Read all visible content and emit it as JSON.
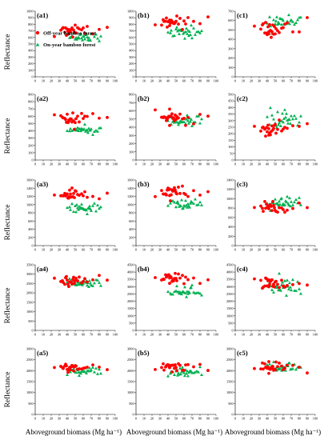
{
  "figure": {
    "ylabel": "Reflectance",
    "xlabel": "Aboveground biomass (Mg ha⁻¹)"
  },
  "legend": {
    "off_year": "Off-year bamboo forest",
    "on_year": "On-year bamboo forest"
  },
  "colors": {
    "off_year": "#ff0000",
    "on_year": "#00b050",
    "axis": "#000000"
  },
  "chart_data": {
    "type": "scatter",
    "xlim": [
      0,
      100
    ],
    "xticks": [
      0,
      10,
      20,
      30,
      40,
      50,
      60,
      70,
      80,
      90,
      100
    ],
    "series_names": [
      "Off-year bamboo forest",
      "On-year bamboo forest"
    ],
    "off_x": [
      24,
      32,
      34,
      35,
      37,
      38,
      39,
      40,
      41,
      42,
      42,
      43,
      44,
      45,
      46,
      47,
      48,
      49,
      50,
      51,
      53,
      55,
      58,
      60,
      62,
      65,
      72,
      80,
      90
    ],
    "on_x": [
      40,
      43,
      44,
      46,
      48,
      50,
      51,
      52,
      53,
      54,
      55,
      56,
      57,
      58,
      59,
      60,
      61,
      62,
      63,
      64,
      65,
      66,
      67,
      68,
      69,
      70,
      72,
      74,
      76,
      78,
      80,
      82
    ],
    "panels": [
      {
        "label": "(a1)",
        "ylim": [
          0,
          1000
        ],
        "yticks": [
          0,
          100,
          200,
          300,
          400,
          500,
          600,
          700,
          800,
          900,
          1000
        ],
        "off_c": [
          705,
          40
        ],
        "on_c": [
          610,
          35
        ]
      },
      {
        "label": "(b1)",
        "ylim": [
          0,
          1000
        ],
        "yticks": [
          0,
          100,
          200,
          300,
          400,
          500,
          600,
          700,
          800,
          900,
          1000
        ],
        "off_c": [
          830,
          50
        ],
        "on_c": [
          670,
          50
        ]
      },
      {
        "label": "(c1)",
        "ylim": [
          0,
          700
        ],
        "yticks": [
          0,
          100,
          200,
          300,
          400,
          500,
          600,
          700
        ],
        "off_c": [
          520,
          50
        ],
        "on_c": [
          600,
          40
        ]
      },
      {
        "label": "(a2)",
        "ylim": [
          0,
          900
        ],
        "yticks": [
          0,
          100,
          200,
          300,
          400,
          500,
          600,
          700,
          800,
          900
        ],
        "off_c": [
          560,
          60
        ],
        "on_c": [
          415,
          25
        ]
      },
      {
        "label": "(b2)",
        "ylim": [
          0,
          800
        ],
        "yticks": [
          0,
          100,
          200,
          300,
          400,
          500,
          600,
          700,
          800
        ],
        "off_c": [
          510,
          40
        ],
        "on_c": [
          470,
          30
        ]
      },
      {
        "label": "(c2)",
        "ylim": [
          0,
          500
        ],
        "yticks": [
          0,
          50,
          100,
          150,
          200,
          250,
          300,
          350,
          400,
          450,
          500
        ],
        "off_c": [
          250,
          40
        ],
        "on_c": [
          300,
          45
        ]
      },
      {
        "label": "(a3)",
        "ylim": [
          0,
          1600
        ],
        "yticks": [
          0,
          200,
          400,
          600,
          800,
          1000,
          1200,
          1400,
          1600
        ],
        "off_c": [
          1240,
          70
        ],
        "on_c": [
          920,
          60
        ]
      },
      {
        "label": "(b3)",
        "ylim": [
          0,
          1600
        ],
        "yticks": [
          0,
          200,
          400,
          600,
          800,
          1000,
          1200,
          1400,
          1600
        ],
        "off_c": [
          1290,
          80
        ],
        "on_c": [
          1000,
          60
        ]
      },
      {
        "label": "(c3)",
        "ylim": [
          0,
          1400
        ],
        "yticks": [
          0,
          200,
          400,
          600,
          800,
          1000,
          1200,
          1400
        ],
        "off_c": [
          820,
          60
        ],
        "on_c": [
          920,
          70
        ]
      },
      {
        "label": "(a4)",
        "ylim": [
          0,
          3500
        ],
        "yticks": [
          0,
          500,
          1000,
          1500,
          2000,
          2500,
          3000,
          3500
        ],
        "off_c": [
          2700,
          150
        ],
        "on_c": [
          2550,
          130
        ]
      },
      {
        "label": "(b4)",
        "ylim": [
          0,
          4500
        ],
        "yticks": [
          0,
          500,
          1000,
          1500,
          2000,
          2500,
          3000,
          3500,
          4000,
          4500
        ],
        "off_c": [
          3550,
          200
        ],
        "on_c": [
          2650,
          150
        ]
      },
      {
        "label": "(c4)",
        "ylim": [
          0,
          4500
        ],
        "yticks": [
          0,
          500,
          1000,
          1500,
          2000,
          2500,
          3000,
          3500,
          4000,
          4500
        ],
        "off_c": [
          3300,
          250
        ],
        "on_c": [
          3000,
          300
        ]
      },
      {
        "label": "(a5)",
        "ylim": [
          0,
          3000
        ],
        "yticks": [
          0,
          500,
          1000,
          1500,
          2000,
          2500,
          3000
        ],
        "off_c": [
          2150,
          90
        ],
        "on_c": [
          1980,
          80
        ]
      },
      {
        "label": "(b5)",
        "ylim": [
          0,
          3000
        ],
        "yticks": [
          0,
          500,
          1000,
          1500,
          2000,
          2500,
          3000
        ],
        "off_c": [
          2200,
          120
        ],
        "on_c": [
          1900,
          110
        ]
      },
      {
        "label": "(c5)",
        "ylim": [
          0,
          3000
        ],
        "yticks": [
          0,
          500,
          1000,
          1500,
          2000,
          2500,
          3000
        ],
        "off_c": [
          2150,
          120
        ],
        "on_c": [
          2150,
          110
        ]
      }
    ]
  }
}
